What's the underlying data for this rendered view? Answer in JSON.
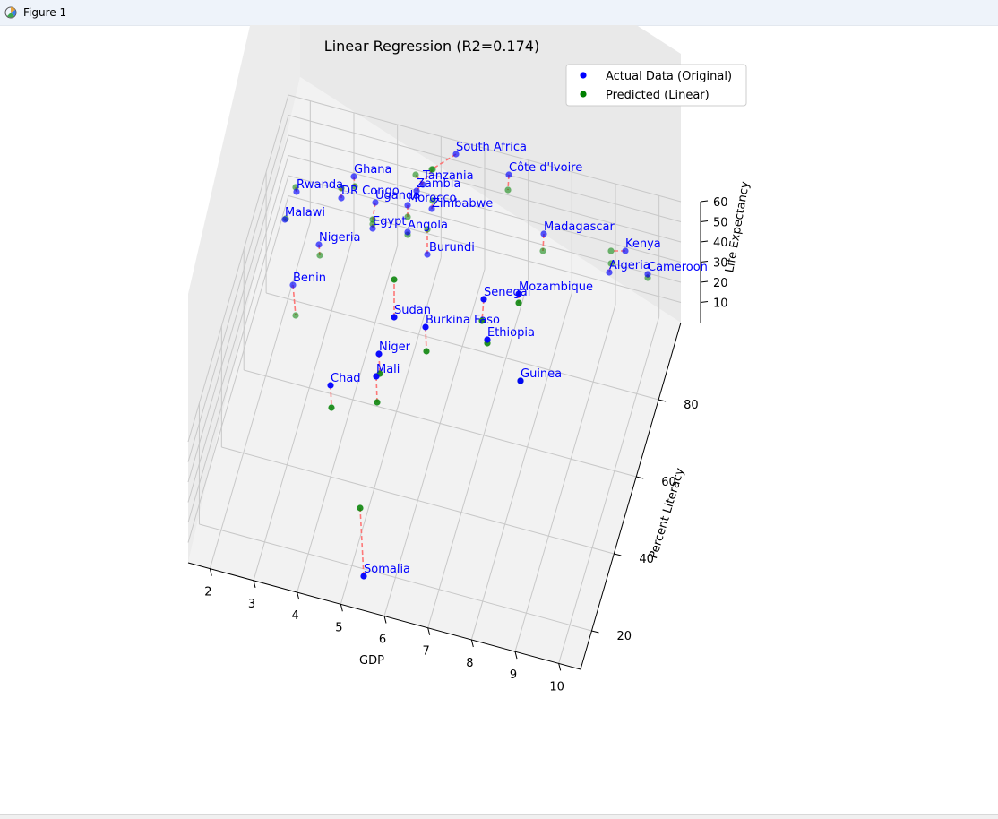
{
  "window": {
    "title": "Figure 1",
    "icon": "matplotlib-figure-icon"
  },
  "chart_data": {
    "type": "scatter",
    "title": "Linear Regression (R2=0.174)",
    "xlabel": "GDP",
    "ylabel": "Percent Literacy",
    "zlabel": "Life Expectancy",
    "xlim": [
      1.5,
      10.5
    ],
    "ylim": [
      10,
      100
    ],
    "zlim": [
      0,
      60
    ],
    "x_ticks": [
      "2",
      "3",
      "4",
      "5",
      "6",
      "7",
      "8",
      "9",
      "10"
    ],
    "y_ticks": [
      "20",
      "40",
      "60",
      "80"
    ],
    "z_ticks": [
      "10",
      "20",
      "30",
      "40",
      "50",
      "60"
    ],
    "grid": true,
    "legend_position": "top-right",
    "series": [
      {
        "name": "Actual Data (Original)",
        "color": "#0000ff",
        "marker": "circle"
      },
      {
        "name": "Predicted (Linear)",
        "color": "#008000",
        "marker": "circle"
      }
    ],
    "residual_line_color": "#ff6b6b",
    "points": [
      {
        "label": "South Africa",
        "gdp": 8.8,
        "literacy": 93,
        "actual": 62,
        "predicted": 45
      },
      {
        "label": "Côte d'Ivoire",
        "gdp": 10.0,
        "literacy": 84,
        "actual": 57,
        "predicted": 52
      },
      {
        "label": "Ghana",
        "gdp": 6.0,
        "literacy": 96,
        "actual": 64,
        "predicted": 62
      },
      {
        "label": "Tanzania",
        "gdp": 7.5,
        "literacy": 93,
        "actual": 66,
        "predicted": 74
      },
      {
        "label": "Zambia",
        "gdp": 7.3,
        "literacy": 90,
        "actual": 62,
        "predicted": 72
      },
      {
        "label": "Rwanda",
        "gdp": 4.9,
        "literacy": 98,
        "actual": 60,
        "predicted": 62
      },
      {
        "label": "DR Congo",
        "gdp": 5.6,
        "literacy": 94,
        "actual": 58,
        "predicted": 58
      },
      {
        "label": "Uganda",
        "gdp": 6.5,
        "literacy": 91,
        "actual": 59,
        "predicted": 60
      },
      {
        "label": "Morocco",
        "gdp": 7.0,
        "literacy": 89,
        "actual": 57,
        "predicted": 62
      },
      {
        "label": "Zimbabwe",
        "gdp": 7.7,
        "literacy": 86,
        "actual": 56,
        "predicted": 58
      },
      {
        "label": "Malawi",
        "gdp": 4.6,
        "literacy": 96,
        "actual": 56,
        "predicted": 55
      },
      {
        "label": "Egypt",
        "gdp": 6.0,
        "literacy": 88,
        "actual": 60,
        "predicted": 62
      },
      {
        "label": "Angola",
        "gdp": 6.9,
        "literacy": 86,
        "actual": 60,
        "predicted": 58
      },
      {
        "label": "Burundi",
        "gdp": 7.2,
        "literacy": 80,
        "actual": 52,
        "predicted": 58
      },
      {
        "label": "Madagascar",
        "gdp": 9.7,
        "literacy": 72,
        "actual": 51,
        "predicted": 45
      },
      {
        "label": "Kenya",
        "gdp": 10.3,
        "literacy": 62,
        "actual": 45,
        "predicted": 45
      },
      {
        "label": "Algeria",
        "gdp": 10.2,
        "literacy": 60,
        "actual": 48,
        "predicted": 53
      },
      {
        "label": "Cameroon",
        "gdp": 10.5,
        "literacy": 58,
        "actual": 46,
        "predicted": 43
      },
      {
        "label": "Nigeria",
        "gdp": 4.8,
        "literacy": 89,
        "actual": 50,
        "predicted": 48
      },
      {
        "label": "Benin",
        "gdp": 4.6,
        "literacy": 82,
        "actual": 38,
        "predicted": 25
      },
      {
        "label": "Mozambique",
        "gdp": 8.9,
        "literacy": 61,
        "actual": 54,
        "predicted": 52
      },
      {
        "label": "Senegal",
        "gdp": 8.5,
        "literacy": 63,
        "actual": 52,
        "predicted": 50
      },
      {
        "label": "Sudan",
        "gdp": 6.6,
        "literacy": 67,
        "actual": 42,
        "predicted": 56
      },
      {
        "label": "Burkina Faso",
        "gdp": 7.2,
        "literacy": 61,
        "actual": 45,
        "predicted": 38
      },
      {
        "label": "Ethiopia",
        "gdp": 8.6,
        "literacy": 55,
        "actual": 52,
        "predicted": 50
      },
      {
        "label": "Niger",
        "gdp": 6.5,
        "literacy": 54,
        "actual": 43,
        "predicted": 38
      },
      {
        "label": "Mali",
        "gdp": 6.4,
        "literacy": 49,
        "actual": 45,
        "predicted": 37
      },
      {
        "label": "Chad",
        "gdp": 5.4,
        "literacy": 48,
        "actual": 46,
        "predicted": 38
      },
      {
        "label": "Guinea",
        "gdp": 8.9,
        "literacy": 43,
        "actual": 60,
        "predicted": 60
      },
      {
        "label": "Somalia",
        "gdp": 6.2,
        "literacy": 20,
        "actual": 20,
        "predicted": 46
      }
    ]
  }
}
